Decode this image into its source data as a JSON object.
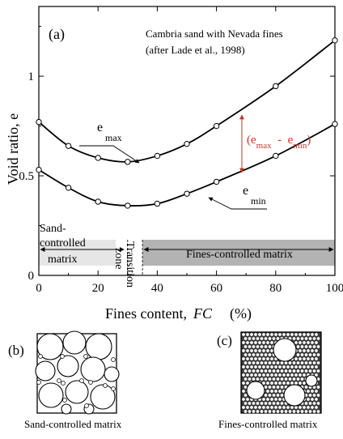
{
  "panel_a_label": "(a)",
  "panel_b_label": "(b)",
  "panel_c_label": "(c)",
  "annotation_line1": "Cambria sand with Nevada fines",
  "annotation_line2": "(after Lade et al., 1998)",
  "emax_label": {
    "main": "e",
    "sub": "max"
  },
  "emin_label": {
    "main": "e",
    "sub": "min"
  },
  "diff_label": {
    "open": "(e",
    "sub1": "max",
    "minus": "  -  e",
    "sub2": "min",
    "close": ")"
  },
  "region_sand": {
    "line1": "Sand-",
    "line2": "controlled",
    "line3": "matrix"
  },
  "region_transition": {
    "line1": "Transition",
    "line2": "zone"
  },
  "region_fines": "Fines-controlled matrix",
  "caption_b": "Sand-controlled matrix",
  "caption_c": "Fines-controlled matrix",
  "colors": {
    "annotation_red": "#c0392b",
    "band_gray": "#b3b3b3",
    "band_light": "#e6e6e6"
  },
  "chart_data": {
    "type": "line",
    "xlabel_main": "Fines content,",
    "xlabel_symbol": "FC",
    "xlabel_unit": "(%)",
    "ylabel": "Void ratio,  e",
    "xlim": [
      0,
      100
    ],
    "ylim": [
      0,
      1.35
    ],
    "x_ticks": [
      "0",
      "20",
      "40",
      "60",
      "80",
      "100"
    ],
    "y_ticks": [
      "0",
      "0.5",
      "1"
    ],
    "series": [
      {
        "name": "e max",
        "x": [
          0,
          10,
          20,
          30,
          40,
          50,
          60,
          80,
          100
        ],
        "y": [
          0.77,
          0.65,
          0.59,
          0.57,
          0.6,
          0.66,
          0.75,
          0.95,
          1.18
        ]
      },
      {
        "name": "e min",
        "x": [
          0,
          10,
          20,
          30,
          40,
          50,
          60,
          80,
          100
        ],
        "y": [
          0.53,
          0.44,
          0.37,
          0.35,
          0.36,
          0.41,
          0.47,
          0.6,
          0.76
        ]
      }
    ],
    "regions": [
      {
        "from": 0,
        "to": 26
      },
      {
        "from": 30,
        "to": 35
      },
      {
        "from": 35,
        "to": 100
      }
    ]
  }
}
